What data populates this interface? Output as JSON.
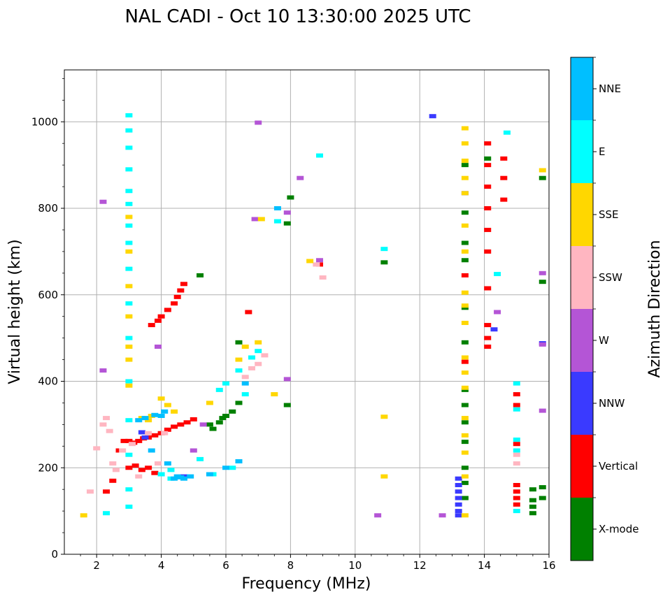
{
  "chart_data": {
    "type": "scatter",
    "title": "NAL CADI - Oct 10 13:30:00 2025 UTC",
    "xlabel": "Frequency (MHz)",
    "ylabel": "Virtual height (km)",
    "xlim": [
      1,
      16
    ],
    "ylim": [
      0,
      1120
    ],
    "xticks": [
      2,
      4,
      6,
      8,
      10,
      12,
      14,
      16
    ],
    "yticks": [
      0,
      200,
      400,
      600,
      800,
      1000
    ],
    "grid": true,
    "colorbar": {
      "label": "Azimuth Direction",
      "categories": [
        {
          "name": "X-mode",
          "color": "#008000"
        },
        {
          "name": "Vertical",
          "color": "#ff0000"
        },
        {
          "name": "NNW",
          "color": "#3a3aff"
        },
        {
          "name": "W",
          "color": "#b455d6"
        },
        {
          "name": "SSW",
          "color": "#ffb6c1"
        },
        {
          "name": "SSE",
          "color": "#ffd700"
        },
        {
          "name": "E",
          "color": "#00ffff"
        },
        {
          "name": "NNE",
          "color": "#00bfff"
        }
      ]
    },
    "series": [
      {
        "name": "Vertical",
        "points": [
          [
            2.3,
            145
          ],
          [
            2.5,
            170
          ],
          [
            2.7,
            240
          ],
          [
            2.85,
            262
          ],
          [
            3.0,
            262
          ],
          [
            3.15,
            258
          ],
          [
            3.3,
            262
          ],
          [
            3.45,
            268
          ],
          [
            3.6,
            270
          ],
          [
            3.8,
            275
          ],
          [
            4.0,
            280
          ],
          [
            4.2,
            288
          ],
          [
            4.4,
            295
          ],
          [
            4.6,
            300
          ],
          [
            4.8,
            305
          ],
          [
            5.0,
            312
          ],
          [
            3.0,
            200
          ],
          [
            3.2,
            205
          ],
          [
            3.4,
            195
          ],
          [
            3.6,
            200
          ],
          [
            3.8,
            188
          ],
          [
            3.7,
            530
          ],
          [
            3.9,
            540
          ],
          [
            4.0,
            550
          ],
          [
            4.2,
            565
          ],
          [
            4.4,
            580
          ],
          [
            4.5,
            595
          ],
          [
            4.6,
            610
          ],
          [
            4.7,
            625
          ],
          [
            6.7,
            560
          ],
          [
            8.9,
            670
          ],
          [
            14.1,
            950
          ],
          [
            14.1,
            900
          ],
          [
            14.1,
            850
          ],
          [
            14.1,
            800
          ],
          [
            14.1,
            750
          ],
          [
            14.1,
            700
          ],
          [
            14.1,
            615
          ],
          [
            14.1,
            530
          ],
          [
            14.1,
            500
          ],
          [
            14.1,
            480
          ],
          [
            14.6,
            915
          ],
          [
            14.6,
            870
          ],
          [
            14.6,
            820
          ],
          [
            15.0,
            370
          ],
          [
            15.0,
            345
          ],
          [
            15.0,
            255
          ],
          [
            15.0,
            160
          ],
          [
            15.0,
            145
          ],
          [
            15.0,
            130
          ],
          [
            15.0,
            115
          ],
          [
            13.4,
            445
          ],
          [
            13.4,
            645
          ]
        ]
      },
      {
        "name": "X-mode",
        "points": [
          [
            5.6,
            290
          ],
          [
            5.8,
            305
          ],
          [
            5.9,
            315
          ],
          [
            6.2,
            330
          ],
          [
            6.0,
            320
          ],
          [
            6.4,
            350
          ],
          [
            5.5,
            300
          ],
          [
            6.4,
            490
          ],
          [
            7.9,
            345
          ],
          [
            7.9,
            765
          ],
          [
            8.0,
            825
          ],
          [
            10.9,
            675
          ],
          [
            13.4,
            900
          ],
          [
            13.4,
            790
          ],
          [
            13.4,
            720
          ],
          [
            13.4,
            680
          ],
          [
            13.4,
            570
          ],
          [
            13.4,
            490
          ],
          [
            13.4,
            380
          ],
          [
            13.4,
            345
          ],
          [
            13.4,
            305
          ],
          [
            13.4,
            260
          ],
          [
            13.4,
            200
          ],
          [
            13.4,
            165
          ],
          [
            13.4,
            130
          ],
          [
            14.1,
            915
          ],
          [
            15.5,
            150
          ],
          [
            15.5,
            125
          ],
          [
            15.5,
            110
          ],
          [
            15.5,
            95
          ],
          [
            15.8,
            870
          ],
          [
            15.8,
            630
          ],
          [
            15.8,
            155
          ],
          [
            15.8,
            130
          ],
          [
            5.2,
            645
          ]
        ]
      },
      {
        "name": "NNW",
        "points": [
          [
            13.2,
            175
          ],
          [
            13.2,
            160
          ],
          [
            13.2,
            145
          ],
          [
            13.2,
            130
          ],
          [
            13.2,
            115
          ],
          [
            13.2,
            100
          ],
          [
            13.2,
            90
          ],
          [
            12.4,
            1013
          ],
          [
            13.4,
            835
          ],
          [
            14.3,
            520
          ],
          [
            15.8,
            488
          ],
          [
            3.4,
            282
          ],
          [
            4.7,
            180
          ],
          [
            3.5,
            270
          ]
        ]
      },
      {
        "name": "W",
        "points": [
          [
            7.0,
            998
          ],
          [
            7.9,
            790
          ],
          [
            8.3,
            870
          ],
          [
            8.9,
            680
          ],
          [
            10.7,
            90
          ],
          [
            12.7,
            90
          ],
          [
            14.4,
            560
          ],
          [
            15.8,
            650
          ],
          [
            15.8,
            485
          ],
          [
            15.8,
            332
          ],
          [
            5.0,
            240
          ],
          [
            5.3,
            300
          ],
          [
            3.9,
            480
          ],
          [
            7.9,
            405
          ],
          [
            2.2,
            425
          ],
          [
            2.2,
            815
          ],
          [
            6.9,
            775
          ]
        ]
      },
      {
        "name": "SSW",
        "points": [
          [
            2.0,
            245
          ],
          [
            2.2,
            300
          ],
          [
            2.3,
            315
          ],
          [
            2.4,
            285
          ],
          [
            2.5,
            210
          ],
          [
            2.6,
            195
          ],
          [
            2.8,
            240
          ],
          [
            3.1,
            255
          ],
          [
            3.3,
            180
          ],
          [
            3.6,
            280
          ],
          [
            3.9,
            210
          ],
          [
            4.1,
            280
          ],
          [
            6.6,
            410
          ],
          [
            6.8,
            430
          ],
          [
            7.0,
            440
          ],
          [
            7.2,
            460
          ],
          [
            8.8,
            670
          ],
          [
            9.0,
            640
          ],
          [
            15.0,
            230
          ],
          [
            15.0,
            210
          ],
          [
            1.8,
            145
          ]
        ]
      },
      {
        "name": "SSE",
        "points": [
          [
            3.0,
            780
          ],
          [
            3.0,
            700
          ],
          [
            3.0,
            620
          ],
          [
            3.0,
            550
          ],
          [
            3.0,
            480
          ],
          [
            3.0,
            450
          ],
          [
            3.0,
            390
          ],
          [
            3.4,
            315
          ],
          [
            3.6,
            310
          ],
          [
            3.7,
            320
          ],
          [
            4.0,
            360
          ],
          [
            4.2,
            345
          ],
          [
            4.4,
            330
          ],
          [
            5.5,
            350
          ],
          [
            6.4,
            450
          ],
          [
            6.6,
            480
          ],
          [
            7.0,
            490
          ],
          [
            7.1,
            775
          ],
          [
            7.5,
            370
          ],
          [
            8.6,
            678
          ],
          [
            10.9,
            318
          ],
          [
            10.9,
            180
          ],
          [
            13.4,
            985
          ],
          [
            13.4,
            950
          ],
          [
            13.4,
            910
          ],
          [
            13.4,
            870
          ],
          [
            13.4,
            835
          ],
          [
            13.4,
            760
          ],
          [
            13.4,
            700
          ],
          [
            13.4,
            605
          ],
          [
            13.4,
            575
          ],
          [
            13.4,
            535
          ],
          [
            13.4,
            455
          ],
          [
            13.4,
            420
          ],
          [
            13.4,
            385
          ],
          [
            13.4,
            315
          ],
          [
            13.4,
            275
          ],
          [
            13.4,
            235
          ],
          [
            13.4,
            180
          ],
          [
            13.4,
            90
          ],
          [
            15.8,
            888
          ],
          [
            1.6,
            90
          ]
        ]
      },
      {
        "name": "E",
        "points": [
          [
            3.0,
            1015
          ],
          [
            3.0,
            980
          ],
          [
            3.0,
            940
          ],
          [
            3.0,
            890
          ],
          [
            3.0,
            840
          ],
          [
            3.0,
            810
          ],
          [
            3.0,
            760
          ],
          [
            3.0,
            720
          ],
          [
            3.0,
            660
          ],
          [
            3.0,
            580
          ],
          [
            3.0,
            500
          ],
          [
            3.0,
            400
          ],
          [
            3.0,
            310
          ],
          [
            3.0,
            230
          ],
          [
            3.0,
            150
          ],
          [
            3.0,
            110
          ],
          [
            2.3,
            95
          ],
          [
            4.0,
            185
          ],
          [
            4.3,
            195
          ],
          [
            5.2,
            220
          ],
          [
            5.6,
            185
          ],
          [
            6.2,
            200
          ],
          [
            6.4,
            425
          ],
          [
            6.6,
            370
          ],
          [
            6.8,
            455
          ],
          [
            7.0,
            470
          ],
          [
            7.6,
            770
          ],
          [
            8.9,
            922
          ],
          [
            10.9,
            706
          ],
          [
            14.4,
            648
          ],
          [
            14.7,
            975
          ],
          [
            15.0,
            395
          ],
          [
            15.0,
            335
          ],
          [
            15.0,
            265
          ],
          [
            15.0,
            240
          ],
          [
            15.0,
            100
          ],
          [
            4.3,
            175
          ],
          [
            5.8,
            380
          ],
          [
            6.0,
            395
          ]
        ]
      },
      {
        "name": "NNE",
        "points": [
          [
            3.3,
            310
          ],
          [
            3.5,
            315
          ],
          [
            3.8,
            322
          ],
          [
            4.1,
            330
          ],
          [
            4.2,
            210
          ],
          [
            4.4,
            175
          ],
          [
            4.5,
            180
          ],
          [
            4.6,
            178
          ],
          [
            4.7,
            175
          ],
          [
            4.9,
            180
          ],
          [
            5.5,
            185
          ],
          [
            6.0,
            200
          ],
          [
            6.4,
            215
          ],
          [
            6.6,
            395
          ],
          [
            7.6,
            800
          ],
          [
            4.0,
            320
          ],
          [
            3.7,
            240
          ]
        ]
      }
    ]
  }
}
